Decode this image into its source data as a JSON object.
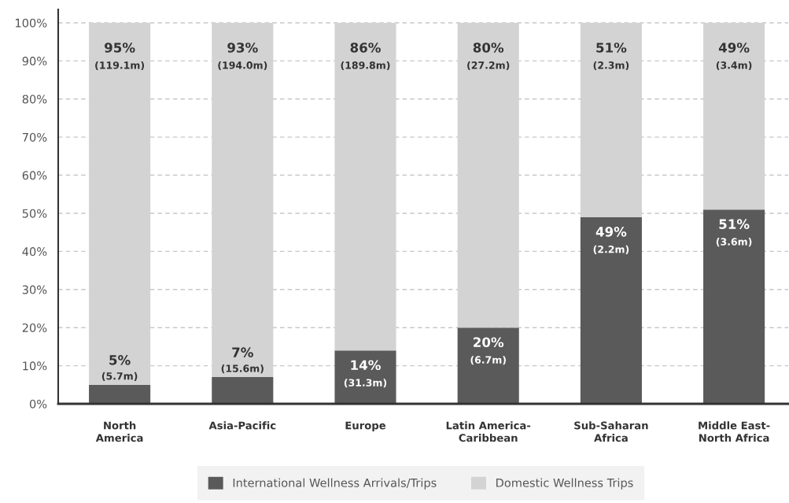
{
  "chart_data": {
    "type": "bar",
    "stacked": true,
    "categories": [
      "North\nAmerica",
      "Asia-Pacific",
      "Europe",
      "Latin America-\nCaribbean",
      "Sub-Saharan\nAfrica",
      "Middle East-\nNorth Africa"
    ],
    "series": [
      {
        "name": "International Wellness Arrivals/Trips",
        "color": "#5a5a5a",
        "values": [
          5,
          7,
          14,
          20,
          49,
          51
        ],
        "value_labels": [
          "5%\n(5.7m)",
          "7%\n(15.6m)",
          "14%\n(31.3m)",
          "20%\n(6.7m)",
          "49%\n(2.2m)",
          "51%\n(3.6m)"
        ]
      },
      {
        "name": "Domestic Wellness Trips",
        "color": "#d3d3d3",
        "values": [
          95,
          93,
          86,
          80,
          51,
          49
        ],
        "value_labels": [
          "95%\n(119.1m)",
          "93%\n(194.0m)",
          "86%\n(189.8m)",
          "80%\n(27.2m)",
          "51%\n(2.3m)",
          "49%\n(3.4m)"
        ]
      }
    ],
    "ylim": [
      0,
      103.5
    ],
    "yticks": [
      {
        "value": 0,
        "label": "0%"
      },
      {
        "value": 10,
        "label": "10%"
      },
      {
        "value": 20,
        "label": "20%"
      },
      {
        "value": 30,
        "label": "30%"
      },
      {
        "value": 40,
        "label": "40%"
      },
      {
        "value": 50,
        "label": "50%"
      },
      {
        "value": 60,
        "label": "60%"
      },
      {
        "value": 70,
        "label": "70%"
      },
      {
        "value": 80,
        "label": "80%"
      },
      {
        "value": 90,
        "label": "90%"
      },
      {
        "value": 100,
        "label": "100%"
      }
    ],
    "grid": "y",
    "legend": "bottom"
  }
}
